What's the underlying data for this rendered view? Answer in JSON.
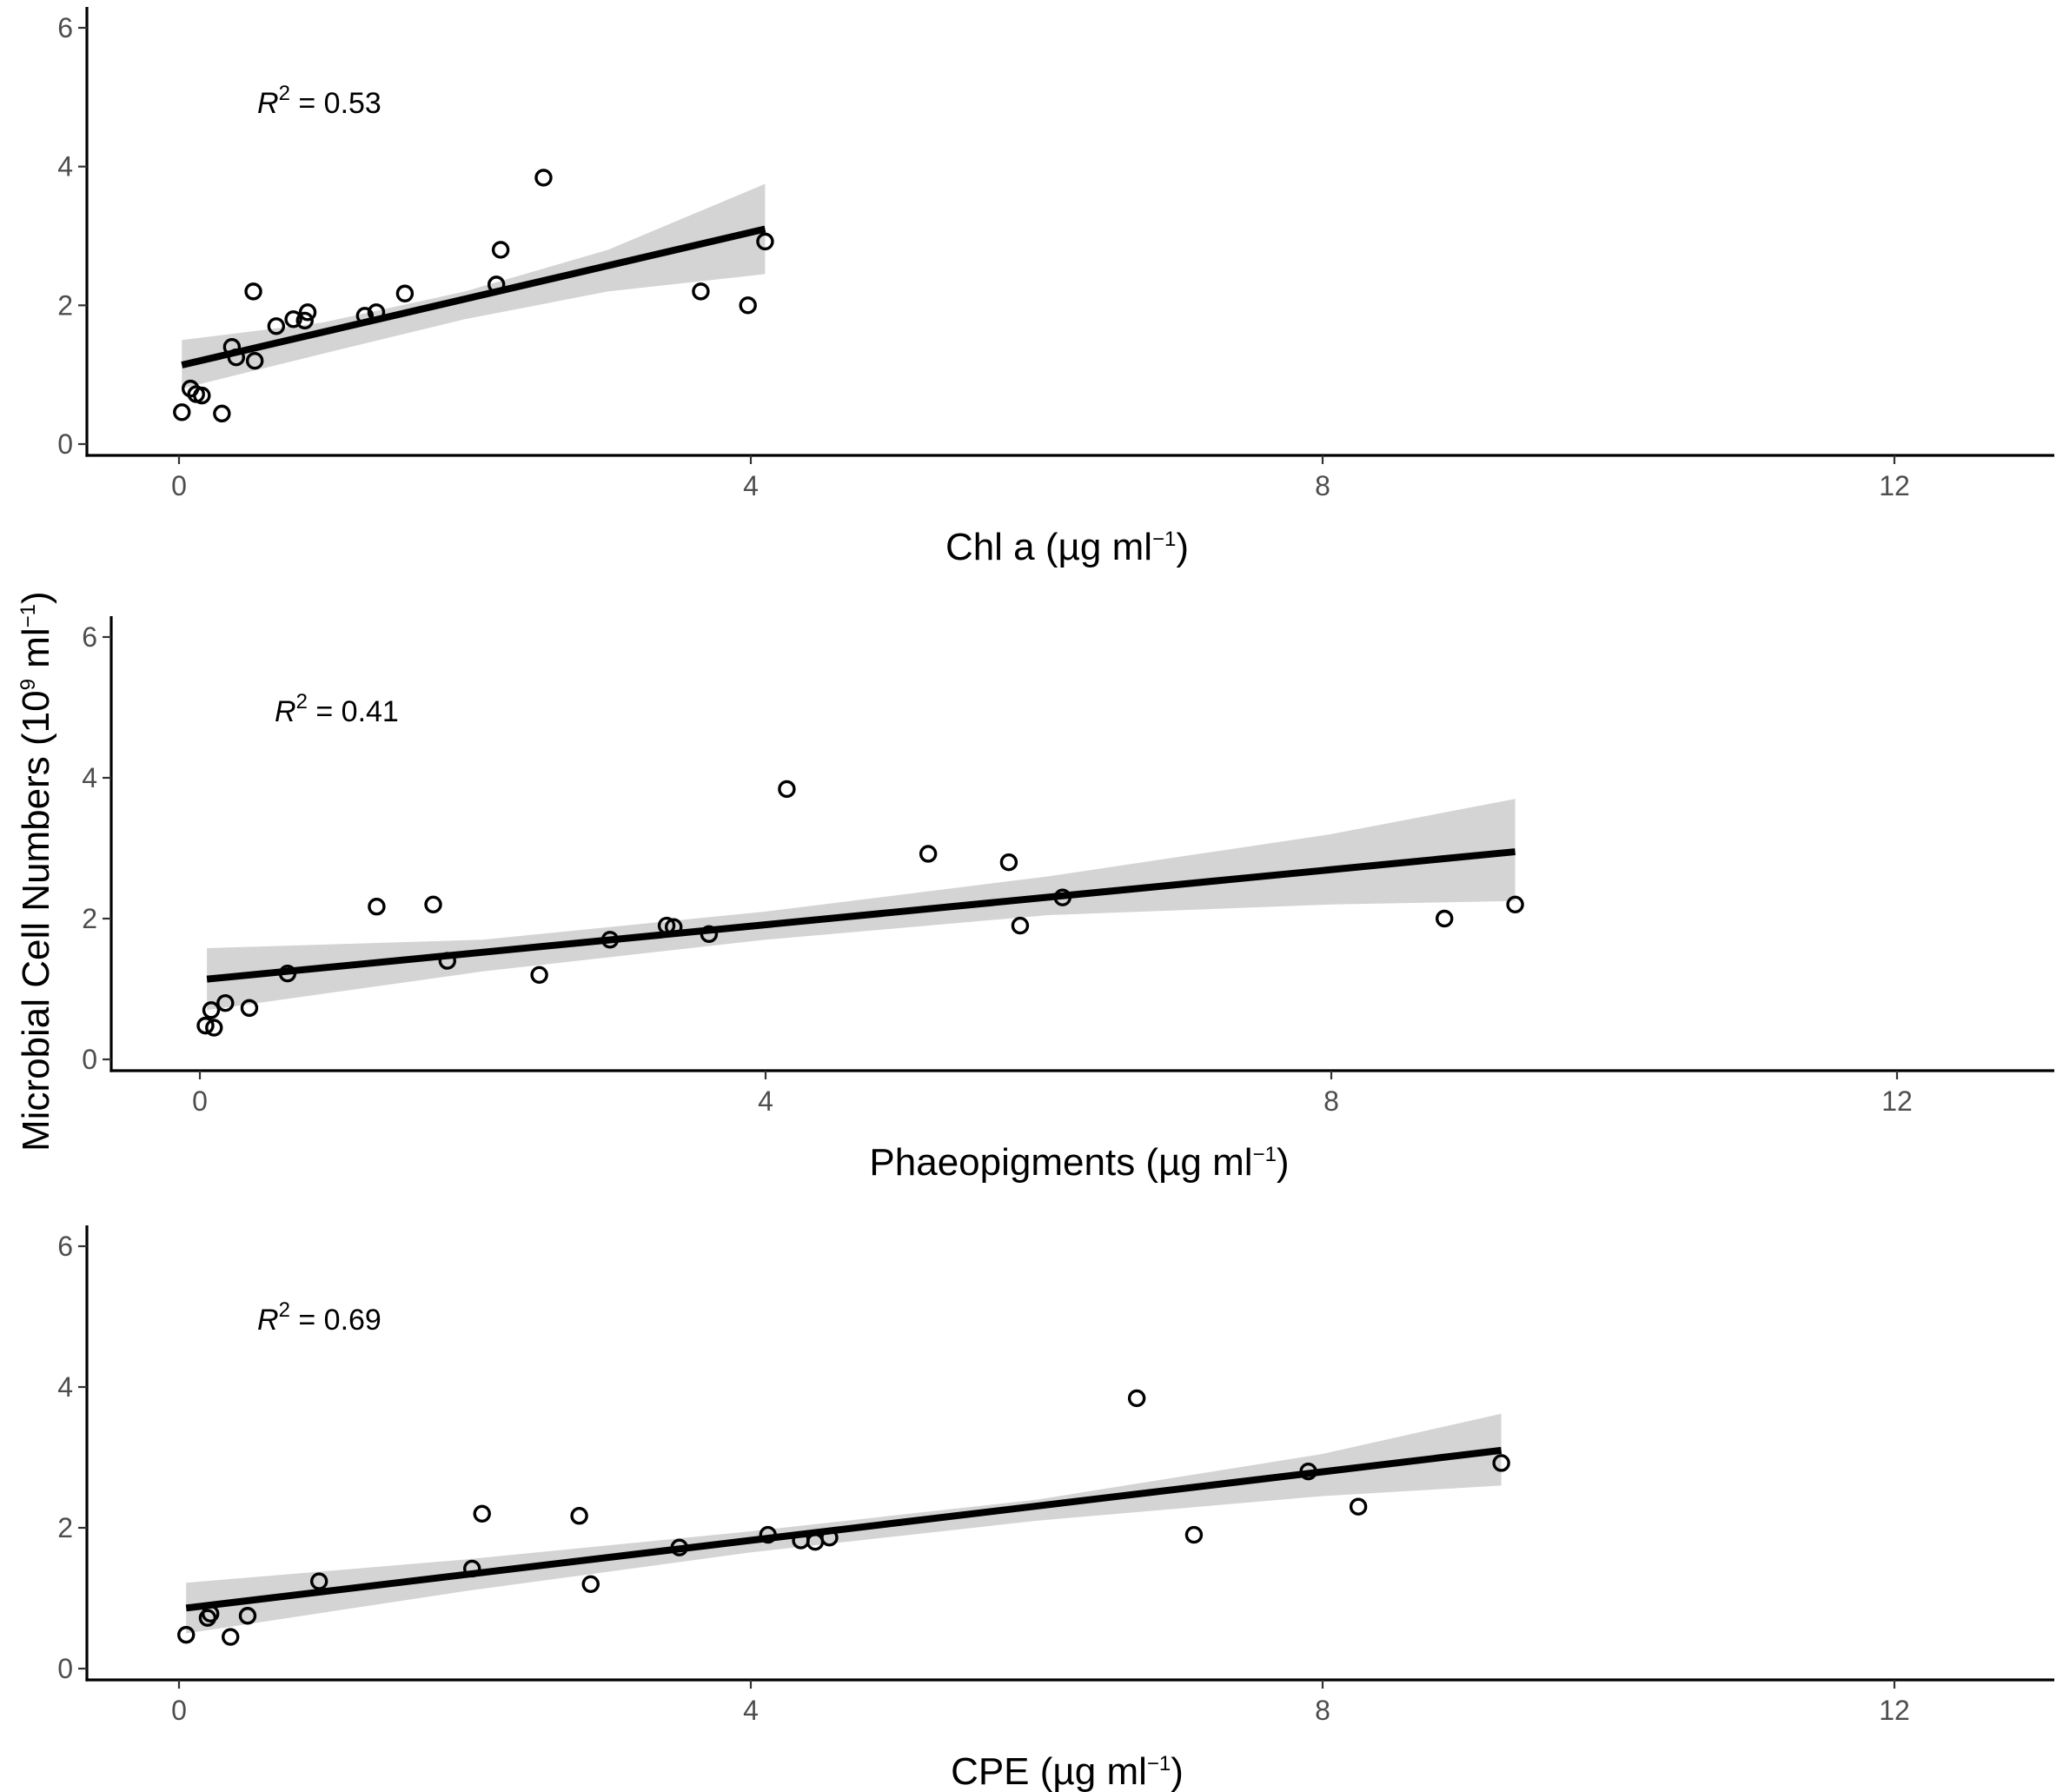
{
  "ylabel": {
    "main": "Microbial Cell Numbers  (10",
    "sup1": "9",
    "mid": " ml",
    "sup2": "−1",
    "end": ")"
  },
  "chart_data": [
    {
      "type": "scatter",
      "xlabel": {
        "main": "Chl a (µg ml",
        "sup": "−1",
        "end": ")"
      },
      "xlim": [
        0,
        13.5
      ],
      "ylim": [
        0,
        6
      ],
      "xticks": [
        0,
        4,
        8,
        12
      ],
      "yticks": [
        0,
        2,
        4,
        6
      ],
      "r2": {
        "r": "R",
        "sup": "2",
        "rest": " = 0.53"
      },
      "fit": {
        "x0": 0.02,
        "x1": 4.1,
        "y0": 1.14,
        "y1": 3.1
      },
      "band": {
        "lower": [
          [
            0.02,
            0.8
          ],
          [
            1.0,
            1.3
          ],
          [
            2.0,
            1.8
          ],
          [
            3.0,
            2.2
          ],
          [
            4.1,
            2.45
          ]
        ],
        "upper": [
          [
            0.02,
            1.5
          ],
          [
            1.0,
            1.75
          ],
          [
            2.0,
            2.2
          ],
          [
            3.0,
            2.8
          ],
          [
            4.1,
            3.75
          ]
        ]
      },
      "points": [
        {
          "x": 0.02,
          "y": 0.46
        },
        {
          "x": 0.08,
          "y": 0.8
        },
        {
          "x": 0.12,
          "y": 0.72
        },
        {
          "x": 0.16,
          "y": 0.7
        },
        {
          "x": 0.3,
          "y": 0.44
        },
        {
          "x": 0.37,
          "y": 1.4
        },
        {
          "x": 0.4,
          "y": 1.25
        },
        {
          "x": 0.52,
          "y": 2.2
        },
        {
          "x": 0.53,
          "y": 1.2
        },
        {
          "x": 0.68,
          "y": 1.7
        },
        {
          "x": 0.8,
          "y": 1.8
        },
        {
          "x": 0.88,
          "y": 1.78
        },
        {
          "x": 0.9,
          "y": 1.9
        },
        {
          "x": 1.3,
          "y": 1.85
        },
        {
          "x": 1.38,
          "y": 1.9
        },
        {
          "x": 1.58,
          "y": 2.17
        },
        {
          "x": 2.22,
          "y": 2.3
        },
        {
          "x": 2.25,
          "y": 2.8
        },
        {
          "x": 2.55,
          "y": 3.84
        },
        {
          "x": 3.65,
          "y": 2.2
        },
        {
          "x": 3.98,
          "y": 2.0
        },
        {
          "x": 4.1,
          "y": 2.92
        }
      ]
    },
    {
      "type": "scatter",
      "xlabel": {
        "main": "Phaeopigments (µg ml",
        "sup": "−1",
        "end": ")"
      },
      "xlim": [
        0,
        13.5
      ],
      "ylim": [
        0,
        6
      ],
      "xticks": [
        0,
        4,
        8,
        12
      ],
      "yticks": [
        0,
        2,
        4,
        6
      ],
      "r2": {
        "r": "R",
        "sup": "2",
        "rest": " = 0.41"
      },
      "fit": {
        "x0": 0.05,
        "x1": 9.3,
        "y0": 1.14,
        "y1": 2.95
      },
      "band": {
        "lower": [
          [
            0.05,
            0.7
          ],
          [
            2.0,
            1.25
          ],
          [
            4.0,
            1.7
          ],
          [
            6.0,
            2.05
          ],
          [
            8.0,
            2.2
          ],
          [
            9.3,
            2.25
          ]
        ],
        "upper": [
          [
            0.05,
            1.58
          ],
          [
            2.0,
            1.7
          ],
          [
            4.0,
            2.1
          ],
          [
            6.0,
            2.6
          ],
          [
            8.0,
            3.2
          ],
          [
            9.3,
            3.7
          ]
        ]
      },
      "points": [
        {
          "x": 0.04,
          "y": 0.48
        },
        {
          "x": 0.08,
          "y": 0.7
        },
        {
          "x": 0.1,
          "y": 0.45
        },
        {
          "x": 0.18,
          "y": 0.8
        },
        {
          "x": 0.35,
          "y": 0.73
        },
        {
          "x": 0.62,
          "y": 1.22
        },
        {
          "x": 1.25,
          "y": 2.17
        },
        {
          "x": 1.65,
          "y": 2.2
        },
        {
          "x": 1.75,
          "y": 1.4
        },
        {
          "x": 2.4,
          "y": 1.2
        },
        {
          "x": 2.9,
          "y": 1.7
        },
        {
          "x": 3.3,
          "y": 1.9
        },
        {
          "x": 3.35,
          "y": 1.88
        },
        {
          "x": 3.6,
          "y": 1.78
        },
        {
          "x": 4.15,
          "y": 3.84
        },
        {
          "x": 5.15,
          "y": 2.92
        },
        {
          "x": 5.72,
          "y": 2.8
        },
        {
          "x": 5.8,
          "y": 1.9
        },
        {
          "x": 6.1,
          "y": 2.3
        },
        {
          "x": 8.8,
          "y": 2.0
        },
        {
          "x": 9.3,
          "y": 2.2
        }
      ]
    },
    {
      "type": "scatter",
      "xlabel": {
        "main": "CPE (µg ml",
        "sup": "−1",
        "end": ")"
      },
      "xlim": [
        0,
        13.5
      ],
      "ylim": [
        0,
        6
      ],
      "xticks": [
        0,
        4,
        8,
        12
      ],
      "yticks": [
        0,
        2,
        4,
        6
      ],
      "r2": {
        "r": "R",
        "sup": "2",
        "rest": " = 0.69"
      },
      "fit": {
        "x0": 0.05,
        "x1": 9.25,
        "y0": 0.86,
        "y1": 3.1
      },
      "band": {
        "lower": [
          [
            0.05,
            0.5
          ],
          [
            2.0,
            1.1
          ],
          [
            4.0,
            1.65
          ],
          [
            6.0,
            2.1
          ],
          [
            8.0,
            2.45
          ],
          [
            9.25,
            2.6
          ]
        ],
        "upper": [
          [
            0.05,
            1.22
          ],
          [
            2.0,
            1.55
          ],
          [
            4.0,
            1.95
          ],
          [
            6.0,
            2.4
          ],
          [
            8.0,
            3.05
          ],
          [
            9.25,
            3.62
          ]
        ]
      },
      "points": [
        {
          "x": 0.05,
          "y": 0.48
        },
        {
          "x": 0.2,
          "y": 0.72
        },
        {
          "x": 0.22,
          "y": 0.78
        },
        {
          "x": 0.36,
          "y": 0.45
        },
        {
          "x": 0.48,
          "y": 0.75
        },
        {
          "x": 0.98,
          "y": 1.24
        },
        {
          "x": 2.05,
          "y": 1.42
        },
        {
          "x": 2.12,
          "y": 2.2
        },
        {
          "x": 2.8,
          "y": 2.17
        },
        {
          "x": 2.88,
          "y": 1.2
        },
        {
          "x": 3.5,
          "y": 1.72
        },
        {
          "x": 4.12,
          "y": 1.9
        },
        {
          "x": 4.35,
          "y": 1.82
        },
        {
          "x": 4.45,
          "y": 1.8
        },
        {
          "x": 4.55,
          "y": 1.86
        },
        {
          "x": 6.7,
          "y": 3.84
        },
        {
          "x": 7.1,
          "y": 1.9
        },
        {
          "x": 7.9,
          "y": 2.8
        },
        {
          "x": 8.25,
          "y": 2.3
        },
        {
          "x": 9.25,
          "y": 2.92
        }
      ]
    }
  ]
}
